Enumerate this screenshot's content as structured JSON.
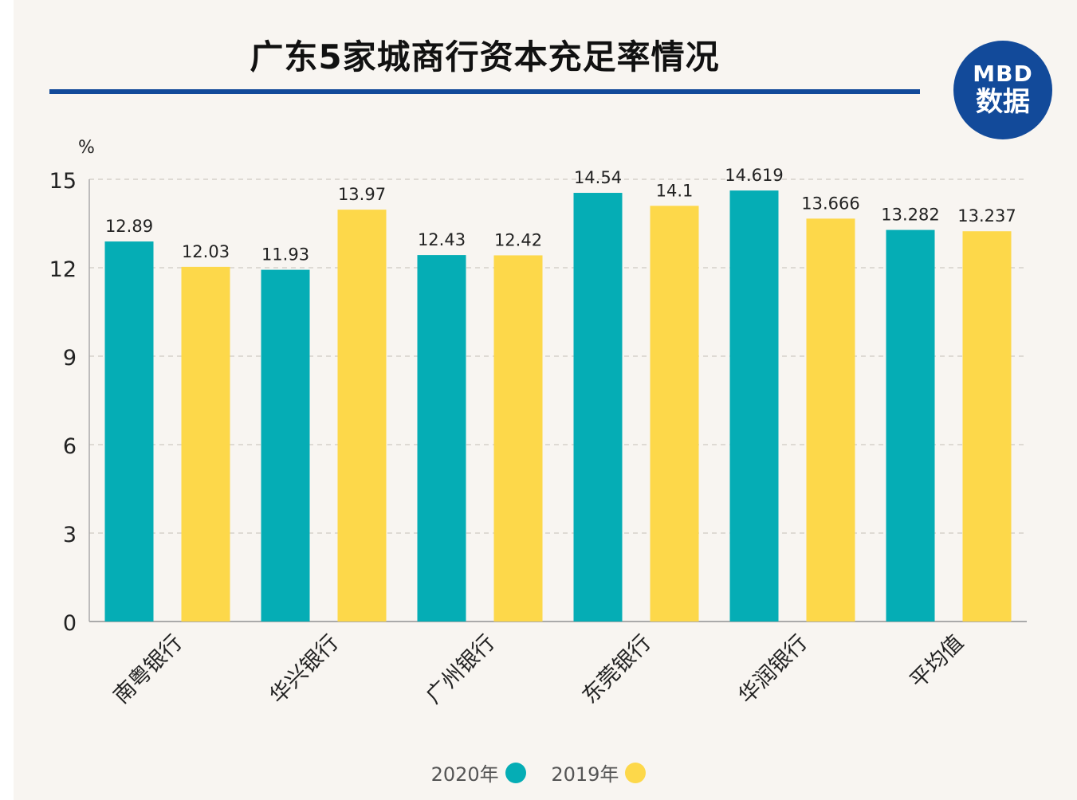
{
  "title": "广东5家城商行资本充足率情况",
  "logo": {
    "top": "MBD",
    "bottom": "数据"
  },
  "chart_data": {
    "type": "bar",
    "title": "广东5家城商行资本充足率情况",
    "unit_label": "%",
    "categories": [
      "南粤银行",
      "华兴银行",
      "广州银行",
      "东莞银行",
      "华润银行",
      "平均值"
    ],
    "series": [
      {
        "name": "2020年",
        "color": "#05adb5",
        "values": [
          12.89,
          11.93,
          12.43,
          14.54,
          14.619,
          13.282
        ],
        "labels": [
          "12.89",
          "11.93",
          "12.43",
          "14.54",
          "14.619",
          "13.282"
        ]
      },
      {
        "name": "2019年",
        "color": "#fdd84a",
        "values": [
          12.03,
          13.97,
          12.42,
          14.1,
          13.666,
          13.237
        ],
        "labels": [
          "12.03",
          "13.97",
          "12.42",
          "14.1",
          "13.666",
          "13.237"
        ]
      }
    ],
    "ylim": [
      0,
      15
    ],
    "yticks": [
      "0",
      "3",
      "6",
      "9",
      "12",
      "15"
    ],
    "grid": true,
    "legend_position": "bottom-center"
  }
}
